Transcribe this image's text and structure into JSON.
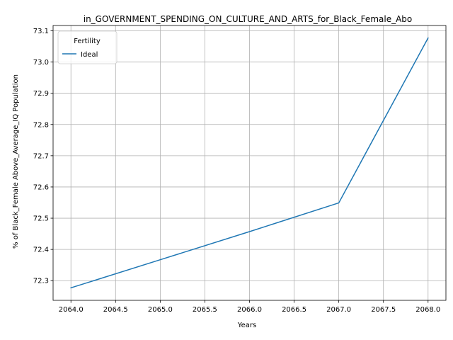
{
  "chart_data": {
    "type": "line",
    "title": "in_GOVERNMENT_SPENDING_ON_CULTURE_AND_ARTS_for_Black_Female_Abo",
    "xlabel": "Years",
    "ylabel": "% of Black_Female Above_Average_IQ Population",
    "x": [
      2064,
      2065,
      2066,
      2067,
      2068
    ],
    "series": [
      {
        "name": "Ideal",
        "color": "#1f77b4",
        "values": [
          72.277,
          72.367,
          72.457,
          72.549,
          73.077
        ]
      }
    ],
    "xlim": [
      2063.8,
      2068.2
    ],
    "ylim": [
      72.237,
      73.117
    ],
    "xticks": [
      2064.0,
      2064.5,
      2065.0,
      2065.5,
      2066.0,
      2066.5,
      2067.0,
      2067.5,
      2068.0
    ],
    "xtick_labels": [
      "2064.0",
      "2064.5",
      "2065.0",
      "2065.5",
      "2066.0",
      "2066.5",
      "2067.0",
      "2067.5",
      "2068.0"
    ],
    "yticks": [
      72.3,
      72.4,
      72.5,
      72.6,
      72.7,
      72.8,
      72.9,
      73.0,
      73.1
    ],
    "ytick_labels": [
      "72.3",
      "72.4",
      "72.5",
      "72.6",
      "72.7",
      "72.8",
      "72.9",
      "73.0",
      "73.1"
    ],
    "grid": true,
    "legend": {
      "title": "Fertility",
      "placement": "top-left"
    }
  }
}
